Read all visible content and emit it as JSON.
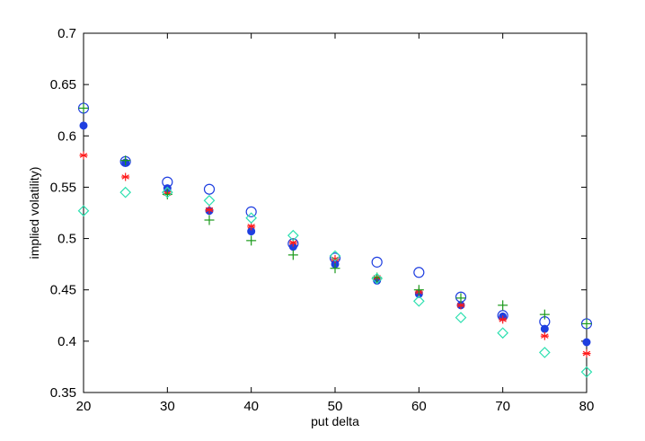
{
  "chart_data": {
    "type": "scatter",
    "xlabel": "put delta",
    "ylabel": "implied volatility)",
    "xlim": [
      20,
      80
    ],
    "ylim": [
      0.35,
      0.7
    ],
    "xticks": [
      20,
      30,
      40,
      50,
      60,
      70,
      80
    ],
    "yticks": [
      0.35,
      0.4,
      0.45,
      0.5,
      0.55,
      0.6,
      0.65,
      0.7
    ],
    "xtick_labels": [
      "20",
      "30",
      "40",
      "50",
      "60",
      "70",
      "80"
    ],
    "ytick_labels": [
      "0.35",
      "0.4",
      "0.45",
      "0.5",
      "0.55",
      "0.6",
      "0.65",
      "0.7"
    ],
    "grid": false,
    "series": [
      {
        "marker": "open-circle",
        "color": "#1f3fe0",
        "x": [
          20,
          25,
          30,
          35,
          40,
          45,
          50,
          55,
          60,
          65,
          70,
          75,
          80
        ],
        "y": [
          0.627,
          0.575,
          0.555,
          0.548,
          0.526,
          0.495,
          0.481,
          0.477,
          0.467,
          0.443,
          0.425,
          0.419,
          0.417
        ]
      },
      {
        "marker": "filled-circle",
        "color": "#1f3fe0",
        "x": [
          20,
          25,
          30,
          35,
          40,
          45,
          50,
          55,
          60,
          65,
          70,
          75,
          80
        ],
        "y": [
          0.61,
          0.574,
          0.549,
          0.527,
          0.507,
          0.492,
          0.475,
          0.459,
          0.446,
          0.435,
          0.424,
          0.412,
          0.399
        ]
      },
      {
        "marker": "asterisk",
        "color": "#ff1a1a",
        "x": [
          20,
          25,
          30,
          35,
          40,
          45,
          50,
          55,
          60,
          65,
          70,
          75,
          80
        ],
        "y": [
          0.581,
          0.56,
          0.544,
          0.528,
          0.512,
          0.496,
          0.48,
          0.462,
          0.448,
          0.435,
          0.421,
          0.405,
          0.388
        ]
      },
      {
        "marker": "plus",
        "color": "#1a9a1a",
        "x": [
          20,
          25,
          30,
          35,
          40,
          45,
          50,
          55,
          60,
          65,
          70,
          75,
          80
        ],
        "y": [
          0.627,
          0.576,
          0.543,
          0.518,
          0.498,
          0.484,
          0.471,
          0.462,
          0.45,
          0.442,
          0.435,
          0.426,
          0.417
        ]
      },
      {
        "marker": "open-diamond",
        "color": "#2ee0b0",
        "x": [
          20,
          25,
          30,
          35,
          40,
          45,
          50,
          55,
          60,
          65,
          70,
          75,
          80
        ],
        "y": [
          0.527,
          0.545,
          0.545,
          0.537,
          0.52,
          0.503,
          0.483,
          0.461,
          0.439,
          0.423,
          0.408,
          0.389,
          0.37
        ]
      }
    ]
  }
}
